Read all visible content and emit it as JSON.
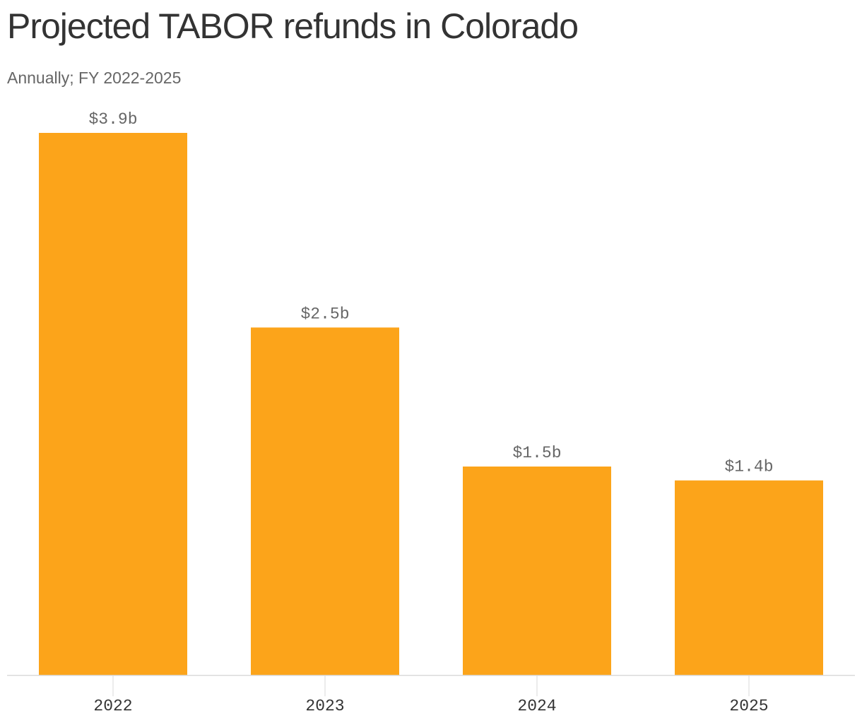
{
  "title": "Projected TABOR refunds in Colorado",
  "subtitle": "Annually; FY 2022-2025",
  "colors": {
    "bar": "#fca41a",
    "axis": "#d9d9d9",
    "value_label": "#666666",
    "tick_label": "#333333"
  },
  "chart_data": {
    "type": "bar",
    "title": "Projected TABOR refunds in Colorado",
    "subtitle": "Annually; FY 2022-2025",
    "categories": [
      "2022",
      "2023",
      "2024",
      "2025"
    ],
    "values": [
      3.9,
      2.5,
      1.5,
      1.4
    ],
    "value_labels": [
      "$3.9b",
      "$2.5b",
      "$1.5b",
      "$1.4b"
    ],
    "xlabel": "",
    "ylabel": "",
    "ylim": [
      0,
      3.9
    ],
    "grid": false,
    "legend": "none"
  }
}
